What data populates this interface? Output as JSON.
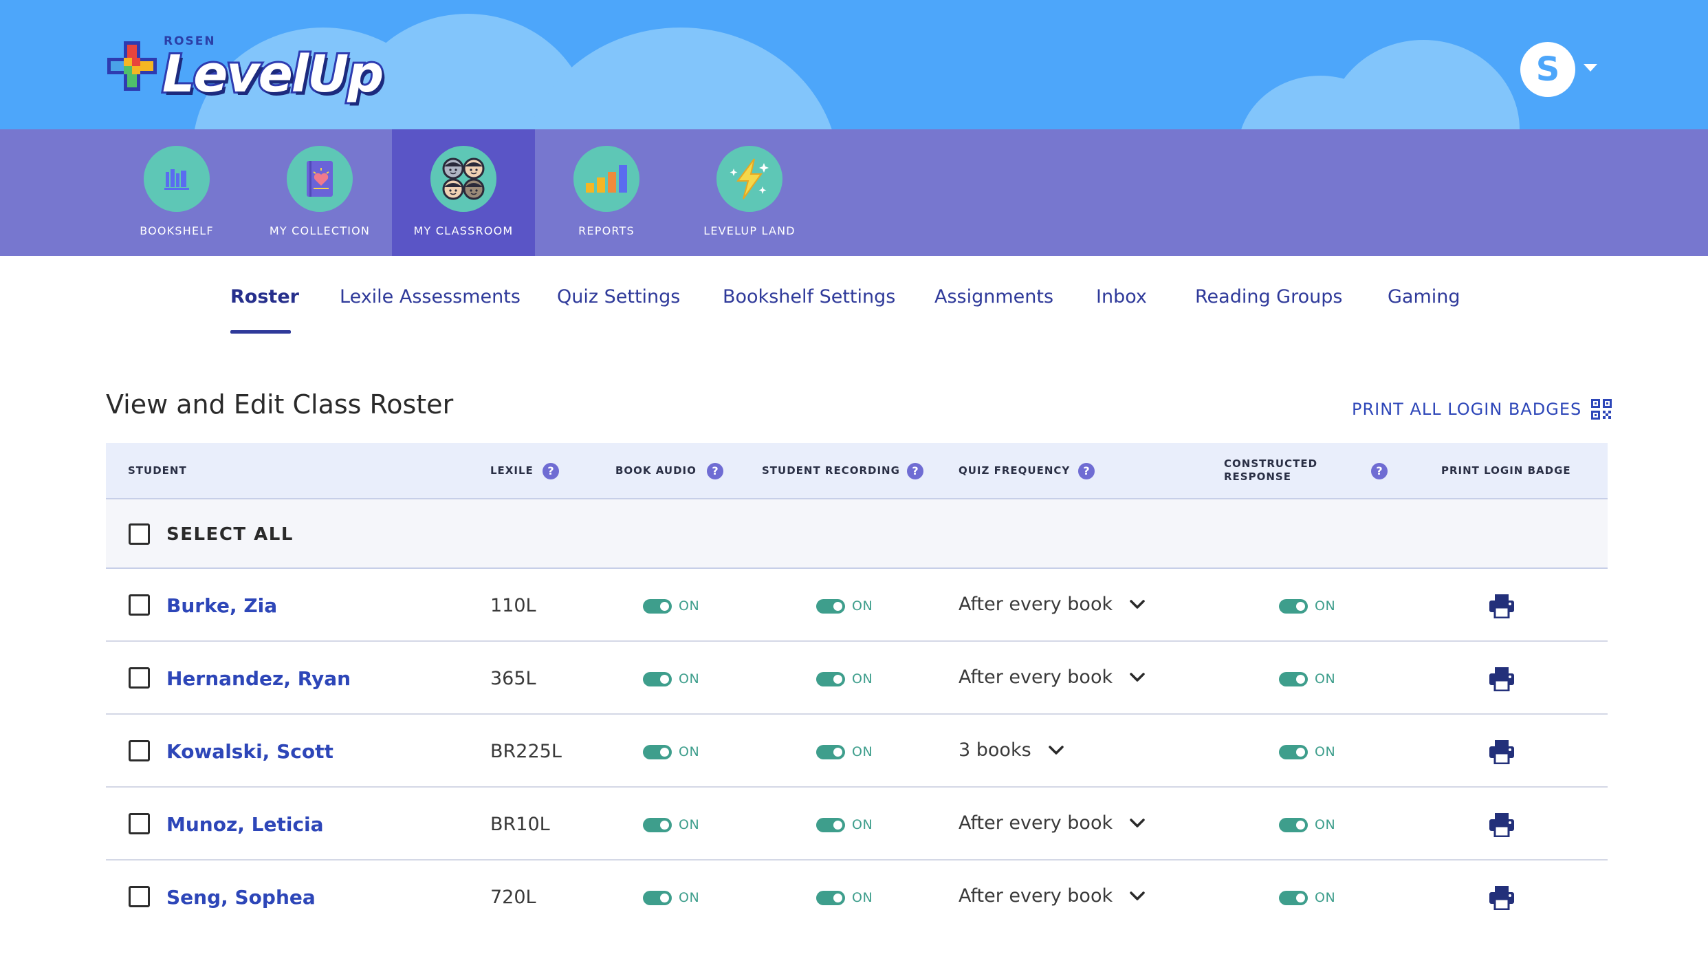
{
  "brand": {
    "small": "ROSEN",
    "name": "LevelUp"
  },
  "user": {
    "initial": "S"
  },
  "colors": {
    "banner": "#4da6fa",
    "nav": "#7777cf",
    "nav_active": "#5a55c6",
    "link": "#2d46b8",
    "toggle_on": "#3e9e8c",
    "help": "#6f6cd3"
  },
  "nav": [
    {
      "label": "BOOKSHELF",
      "icon": "bookshelf-icon"
    },
    {
      "label": "MY COLLECTION",
      "icon": "book-heart-icon"
    },
    {
      "label": "MY CLASSROOM",
      "icon": "students-icon",
      "active": true
    },
    {
      "label": "REPORTS",
      "icon": "bar-chart-icon"
    },
    {
      "label": "LEVELUP LAND",
      "icon": "lightning-icon"
    }
  ],
  "tabs": [
    "Roster",
    "Lexile Assessments",
    "Quiz Settings",
    "Bookshelf Settings",
    "Assignments",
    "Inbox",
    "Reading Groups",
    "Gaming"
  ],
  "page": {
    "title": "View and Edit Class Roster",
    "print_all": "PRINT ALL LOGIN BADGES"
  },
  "table": {
    "headers": {
      "student": "STUDENT",
      "lexile": "LEXILE",
      "book_audio": "BOOK AUDIO",
      "student_recording": "STUDENT RECORDING",
      "quiz_frequency": "QUIZ FREQUENCY",
      "constructed_response_1": "CONSTRUCTED",
      "constructed_response_2": "RESPONSE",
      "print_login_badge": "PRINT LOGIN BADGE"
    },
    "select_all": "SELECT ALL",
    "rows": [
      {
        "name": "Burke, Zia",
        "lexile": "110L",
        "book_audio": "ON",
        "student_recording": "ON",
        "quiz_frequency": "After every book",
        "constructed_response": "ON"
      },
      {
        "name": "Hernandez, Ryan",
        "lexile": "365L",
        "book_audio": "ON",
        "student_recording": "ON",
        "quiz_frequency": "After every book",
        "constructed_response": "ON"
      },
      {
        "name": "Kowalski, Scott",
        "lexile": "BR225L",
        "book_audio": "ON",
        "student_recording": "ON",
        "quiz_frequency": "3 books",
        "constructed_response": "ON"
      },
      {
        "name": "Munoz, Leticia",
        "lexile": "BR10L",
        "book_audio": "ON",
        "student_recording": "ON",
        "quiz_frequency": "After every book",
        "constructed_response": "ON"
      },
      {
        "name": "Seng, Sophea",
        "lexile": "720L",
        "book_audio": "ON",
        "student_recording": "ON",
        "quiz_frequency": "After every book",
        "constructed_response": "ON"
      }
    ]
  }
}
